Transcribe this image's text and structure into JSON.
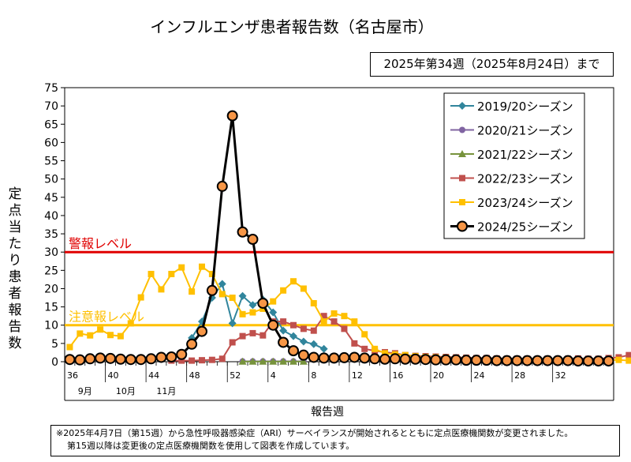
{
  "chart_data": {
    "type": "line",
    "title": "インフルエンザ患者報告数（名古屋市）",
    "as_of": "2025年第34週（2025年8月24日）まで",
    "xlabel": "報告週",
    "ylabel": "定点当たり患者報告数",
    "ylim": [
      0,
      75
    ],
    "yticks": [
      0,
      5,
      10,
      15,
      20,
      25,
      30,
      35,
      40,
      45,
      50,
      55,
      60,
      65,
      70,
      75
    ],
    "week_ticks": [
      "36",
      "40",
      "44",
      "48",
      "52",
      "4",
      "8",
      "12",
      "16",
      "20",
      "24",
      "28",
      "32"
    ],
    "month_labels": [
      "9月",
      "10月",
      "11月"
    ],
    "thresholds": [
      {
        "label": "警報レベル",
        "value": 30,
        "color": "#e00000"
      },
      {
        "label": "注意報レベル",
        "value": 10,
        "color": "#ffc000"
      }
    ],
    "legend_position": "top-right",
    "series": [
      {
        "name": "2019/20シーズン",
        "color": "#31859c",
        "marker": "diamond",
        "start_index": 12,
        "values": [
          6.5,
          11,
          17.5,
          21.3,
          10.5,
          18,
          15.5,
          17,
          13.5,
          8.5,
          7,
          5.5,
          4.8,
          3.5
        ]
      },
      {
        "name": "2020/21シーズン",
        "color": "#8064a2",
        "marker": "circle",
        "start_index": 17,
        "values": [
          0.1,
          0.1,
          0.1,
          0.1,
          0.1,
          0.1,
          0.1
        ]
      },
      {
        "name": "2021/22シーズン",
        "color": "#77933c",
        "marker": "triangle",
        "start_index": 17,
        "values": [
          0.05,
          0.05,
          0.05,
          0.05,
          0.05,
          0.05,
          0.05
        ]
      },
      {
        "name": "2022/23シーズン",
        "color": "#c0504d",
        "marker": "square",
        "start_index": 10,
        "values": [
          0.3,
          0.3,
          0.3,
          0.4,
          0.5,
          0.8,
          5.3,
          7,
          7.8,
          7.2,
          11,
          11,
          10,
          9,
          8.5,
          12.5,
          11,
          9,
          5,
          3.5,
          3,
          2.6,
          2.3,
          1.8,
          1.6,
          1.5,
          1.4,
          1.3,
          1.2,
          1.1,
          1,
          1,
          0.9,
          0.8,
          0.8,
          0.8,
          0.7,
          0.8,
          0.7,
          0.8,
          0.9,
          0.8,
          0.8,
          1,
          1.2,
          1.8,
          3.3
        ]
      },
      {
        "name": "2023/24シーズン",
        "color": "#ffc000",
        "marker": "square",
        "start_index": 0,
        "values": [
          4,
          7.7,
          7.2,
          8.8,
          7.3,
          7,
          10.5,
          17.6,
          24,
          19.8,
          24,
          25.8,
          19.2,
          26,
          24,
          18.5,
          17.5,
          13,
          13.5,
          14.5,
          16.5,
          19.5,
          22,
          20,
          16,
          11,
          13.2,
          12.5,
          11,
          7.5,
          3.5,
          2.3,
          2,
          1.8,
          1.5,
          1.3,
          1.2,
          1.1,
          1,
          0.9,
          0.8,
          0.8,
          0.7,
          0.7,
          0.6,
          0.6,
          0.5,
          0.5,
          0.5,
          0.5,
          0.4,
          0.4,
          0.4,
          0.4,
          0.5,
          0.3,
          0.8
        ]
      },
      {
        "name": "2024/25シーズン",
        "color": "#000000",
        "marker": "circle-orange",
        "start_index": 0,
        "values": [
          0.6,
          0.5,
          0.8,
          1,
          0.9,
          0.7,
          0.6,
          0.6,
          0.8,
          1.2,
          1.3,
          2,
          4.8,
          8.3,
          19.5,
          48,
          67.3,
          35.5,
          33.5,
          16,
          10,
          5.3,
          3,
          1.8,
          1.2,
          1,
          1,
          1.1,
          1.2,
          1,
          0.8,
          0.7,
          0.8,
          0.7,
          0.7,
          0.6,
          0.5,
          0.5,
          0.5,
          0.4,
          0.4,
          0.4,
          0.3,
          0.3,
          0.3,
          0.3,
          0.3,
          0.3,
          0.3,
          0.3,
          0.2,
          0.2,
          0.2,
          0.2
        ]
      }
    ]
  },
  "notes": [
    "※2025年4月7日（第15週）から急性呼吸器感染症（ARI）サーベイランスが開始されるとともに定点医療機関数が変更されました。",
    "第15週以降は変更後の定点医療機関数を使用して図表を作成しています。"
  ]
}
